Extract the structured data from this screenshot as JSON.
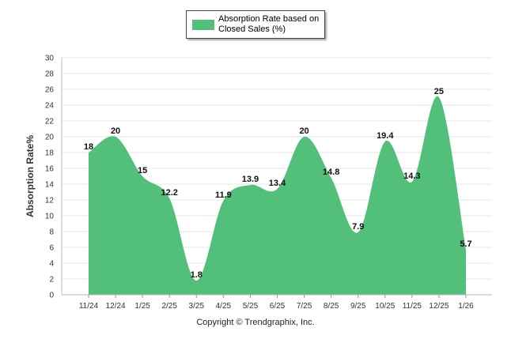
{
  "chart_data": {
    "type": "area",
    "title": "",
    "legend": {
      "label": "Absorption Rate based on Closed Sales (%)",
      "placement": "top-center"
    },
    "categories": [
      "11/24",
      "12/24",
      "1/25",
      "2/25",
      "3/25",
      "4/25",
      "5/25",
      "6/25",
      "7/25",
      "8/25",
      "9/25",
      "10/25",
      "11/25",
      "12/25",
      "1/26"
    ],
    "series": [
      {
        "name": "Absorption Rate based on Closed Sales (%)",
        "values": [
          18,
          20,
          15,
          12.2,
          1.8,
          11.9,
          13.9,
          13.4,
          20,
          14.8,
          7.9,
          19.4,
          14.3,
          25,
          5.7
        ],
        "color": "#52c07a"
      }
    ],
    "data_labels": [
      "18",
      "20",
      "15",
      "12.2",
      "1.8",
      "11.9",
      "13.9",
      "13.4",
      "20",
      "14.8",
      "7.9",
      "19.4",
      "14.3",
      "25",
      "5.7"
    ],
    "xlabel": "",
    "ylabel": "Absorption Rate%",
    "ylim": [
      0,
      30
    ],
    "yticks": [
      "0",
      "2",
      "4",
      "6",
      "8",
      "10",
      "12",
      "14",
      "16",
      "18",
      "20",
      "22",
      "24",
      "26",
      "28",
      "30"
    ],
    "grid": true
  },
  "legend_label": "Absorption Rate based on Closed Sales (%)",
  "copyright": "Copyright © Trendgraphix, Inc."
}
